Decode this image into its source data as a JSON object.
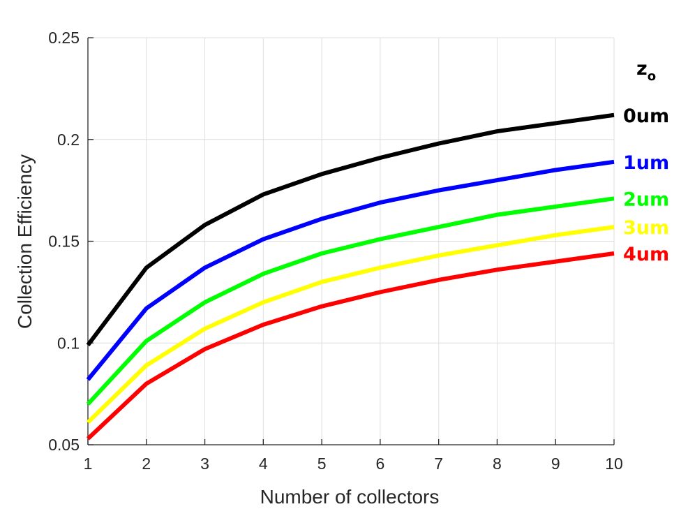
{
  "chart_data": {
    "type": "line",
    "xlabel": "Number of collectors",
    "ylabel": "Collection Efficiency",
    "xlim": [
      1,
      10
    ],
    "ylim": [
      0.05,
      0.25
    ],
    "x": [
      1,
      2,
      3,
      4,
      5,
      6,
      7,
      8,
      9,
      10
    ],
    "xticks": [
      "1",
      "2",
      "3",
      "4",
      "5",
      "6",
      "7",
      "8",
      "9",
      "10"
    ],
    "yticks": [
      "0.05",
      "0.1",
      "0.15",
      "0.2",
      "0.25"
    ],
    "ytick_values": [
      0.05,
      0.1,
      0.15,
      0.2,
      0.25
    ],
    "grid": true,
    "legend_title": "z",
    "legend_title_sub": "o",
    "series": [
      {
        "name": "0um",
        "color": "#000000",
        "values": [
          0.099,
          0.137,
          0.158,
          0.173,
          0.183,
          0.191,
          0.198,
          0.204,
          0.208,
          0.212
        ]
      },
      {
        "name": "1um",
        "color": "#0000ff",
        "values": [
          0.082,
          0.117,
          0.137,
          0.151,
          0.161,
          0.169,
          0.175,
          0.18,
          0.185,
          0.189
        ]
      },
      {
        "name": "2um",
        "color": "#00ff00",
        "values": [
          0.07,
          0.101,
          0.12,
          0.134,
          0.144,
          0.151,
          0.157,
          0.163,
          0.167,
          0.171
        ]
      },
      {
        "name": "3um",
        "color": "#ffff00",
        "values": [
          0.061,
          0.089,
          0.107,
          0.12,
          0.13,
          0.137,
          0.143,
          0.148,
          0.153,
          0.157
        ]
      },
      {
        "name": "4um",
        "color": "#ff0000",
        "values": [
          0.053,
          0.08,
          0.097,
          0.109,
          0.118,
          0.125,
          0.131,
          0.136,
          0.14,
          0.144
        ]
      }
    ]
  }
}
